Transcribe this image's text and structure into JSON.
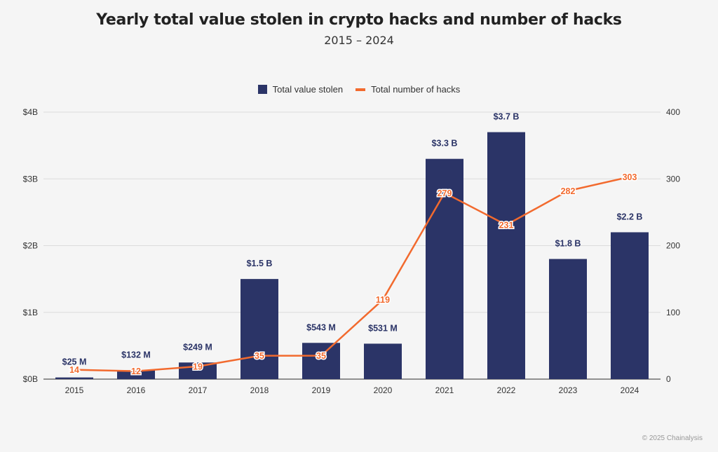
{
  "chart_data": {
    "type": "bar+line",
    "title": "Yearly total value stolen in crypto hacks and number of hacks",
    "subtitle": "2015 – 2024",
    "categories": [
      "2015",
      "2016",
      "2017",
      "2018",
      "2019",
      "2020",
      "2021",
      "2022",
      "2023",
      "2024"
    ],
    "series": [
      {
        "name": "Total value stolen",
        "type": "bar",
        "axis": "left",
        "unit": "billion USD",
        "values": [
          0.025,
          0.132,
          0.249,
          1.5,
          0.543,
          0.531,
          3.3,
          3.7,
          1.8,
          2.2
        ],
        "labels": [
          "$25  M",
          "$132  M",
          "$249  M",
          "$1.5 B",
          "$543  M",
          "$531  M",
          "$3.3 B",
          "$3.7 B",
          "$1.8 B",
          "$2.2 B"
        ],
        "color": "#2b3467"
      },
      {
        "name": "Total number of hacks",
        "type": "line",
        "axis": "right",
        "values": [
          14,
          12,
          19,
          35,
          35,
          119,
          279,
          231,
          282,
          303
        ],
        "color": "#f26a2e"
      }
    ],
    "left_axis": {
      "ylim": [
        0,
        4
      ],
      "ticks": [
        "$0B",
        "$1B",
        "$2B",
        "$3B",
        "$4B"
      ]
    },
    "right_axis": {
      "ylim": [
        0,
        400
      ],
      "ticks": [
        "0",
        "100",
        "200",
        "300",
        "400"
      ]
    },
    "grid": true,
    "legend": "top-center"
  },
  "footer": "© 2025 Chainalysis"
}
